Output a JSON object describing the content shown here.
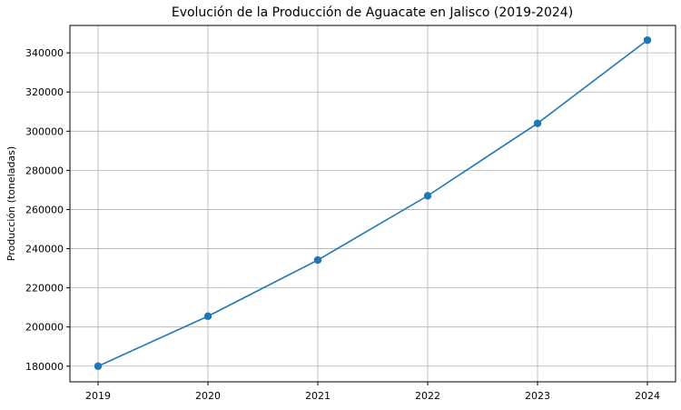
{
  "chart_data": {
    "type": "line",
    "title": "Evolución de la Producción de Aguacate en Jalisco (2019-2024)",
    "xlabel": "",
    "ylabel": "Producción (toneladas)",
    "x": [
      2019,
      2020,
      2021,
      2022,
      2023,
      2024
    ],
    "series": [
      {
        "values": [
          180000,
          205500,
          234200,
          267000,
          304000,
          346500
        ],
        "color": "#1f77b4",
        "marker": "circle"
      }
    ],
    "ylim": [
      172000,
      354000
    ],
    "yticks": [
      180000,
      200000,
      220000,
      240000,
      260000,
      280000,
      300000,
      320000,
      340000
    ],
    "grid": true,
    "legend": "none"
  }
}
